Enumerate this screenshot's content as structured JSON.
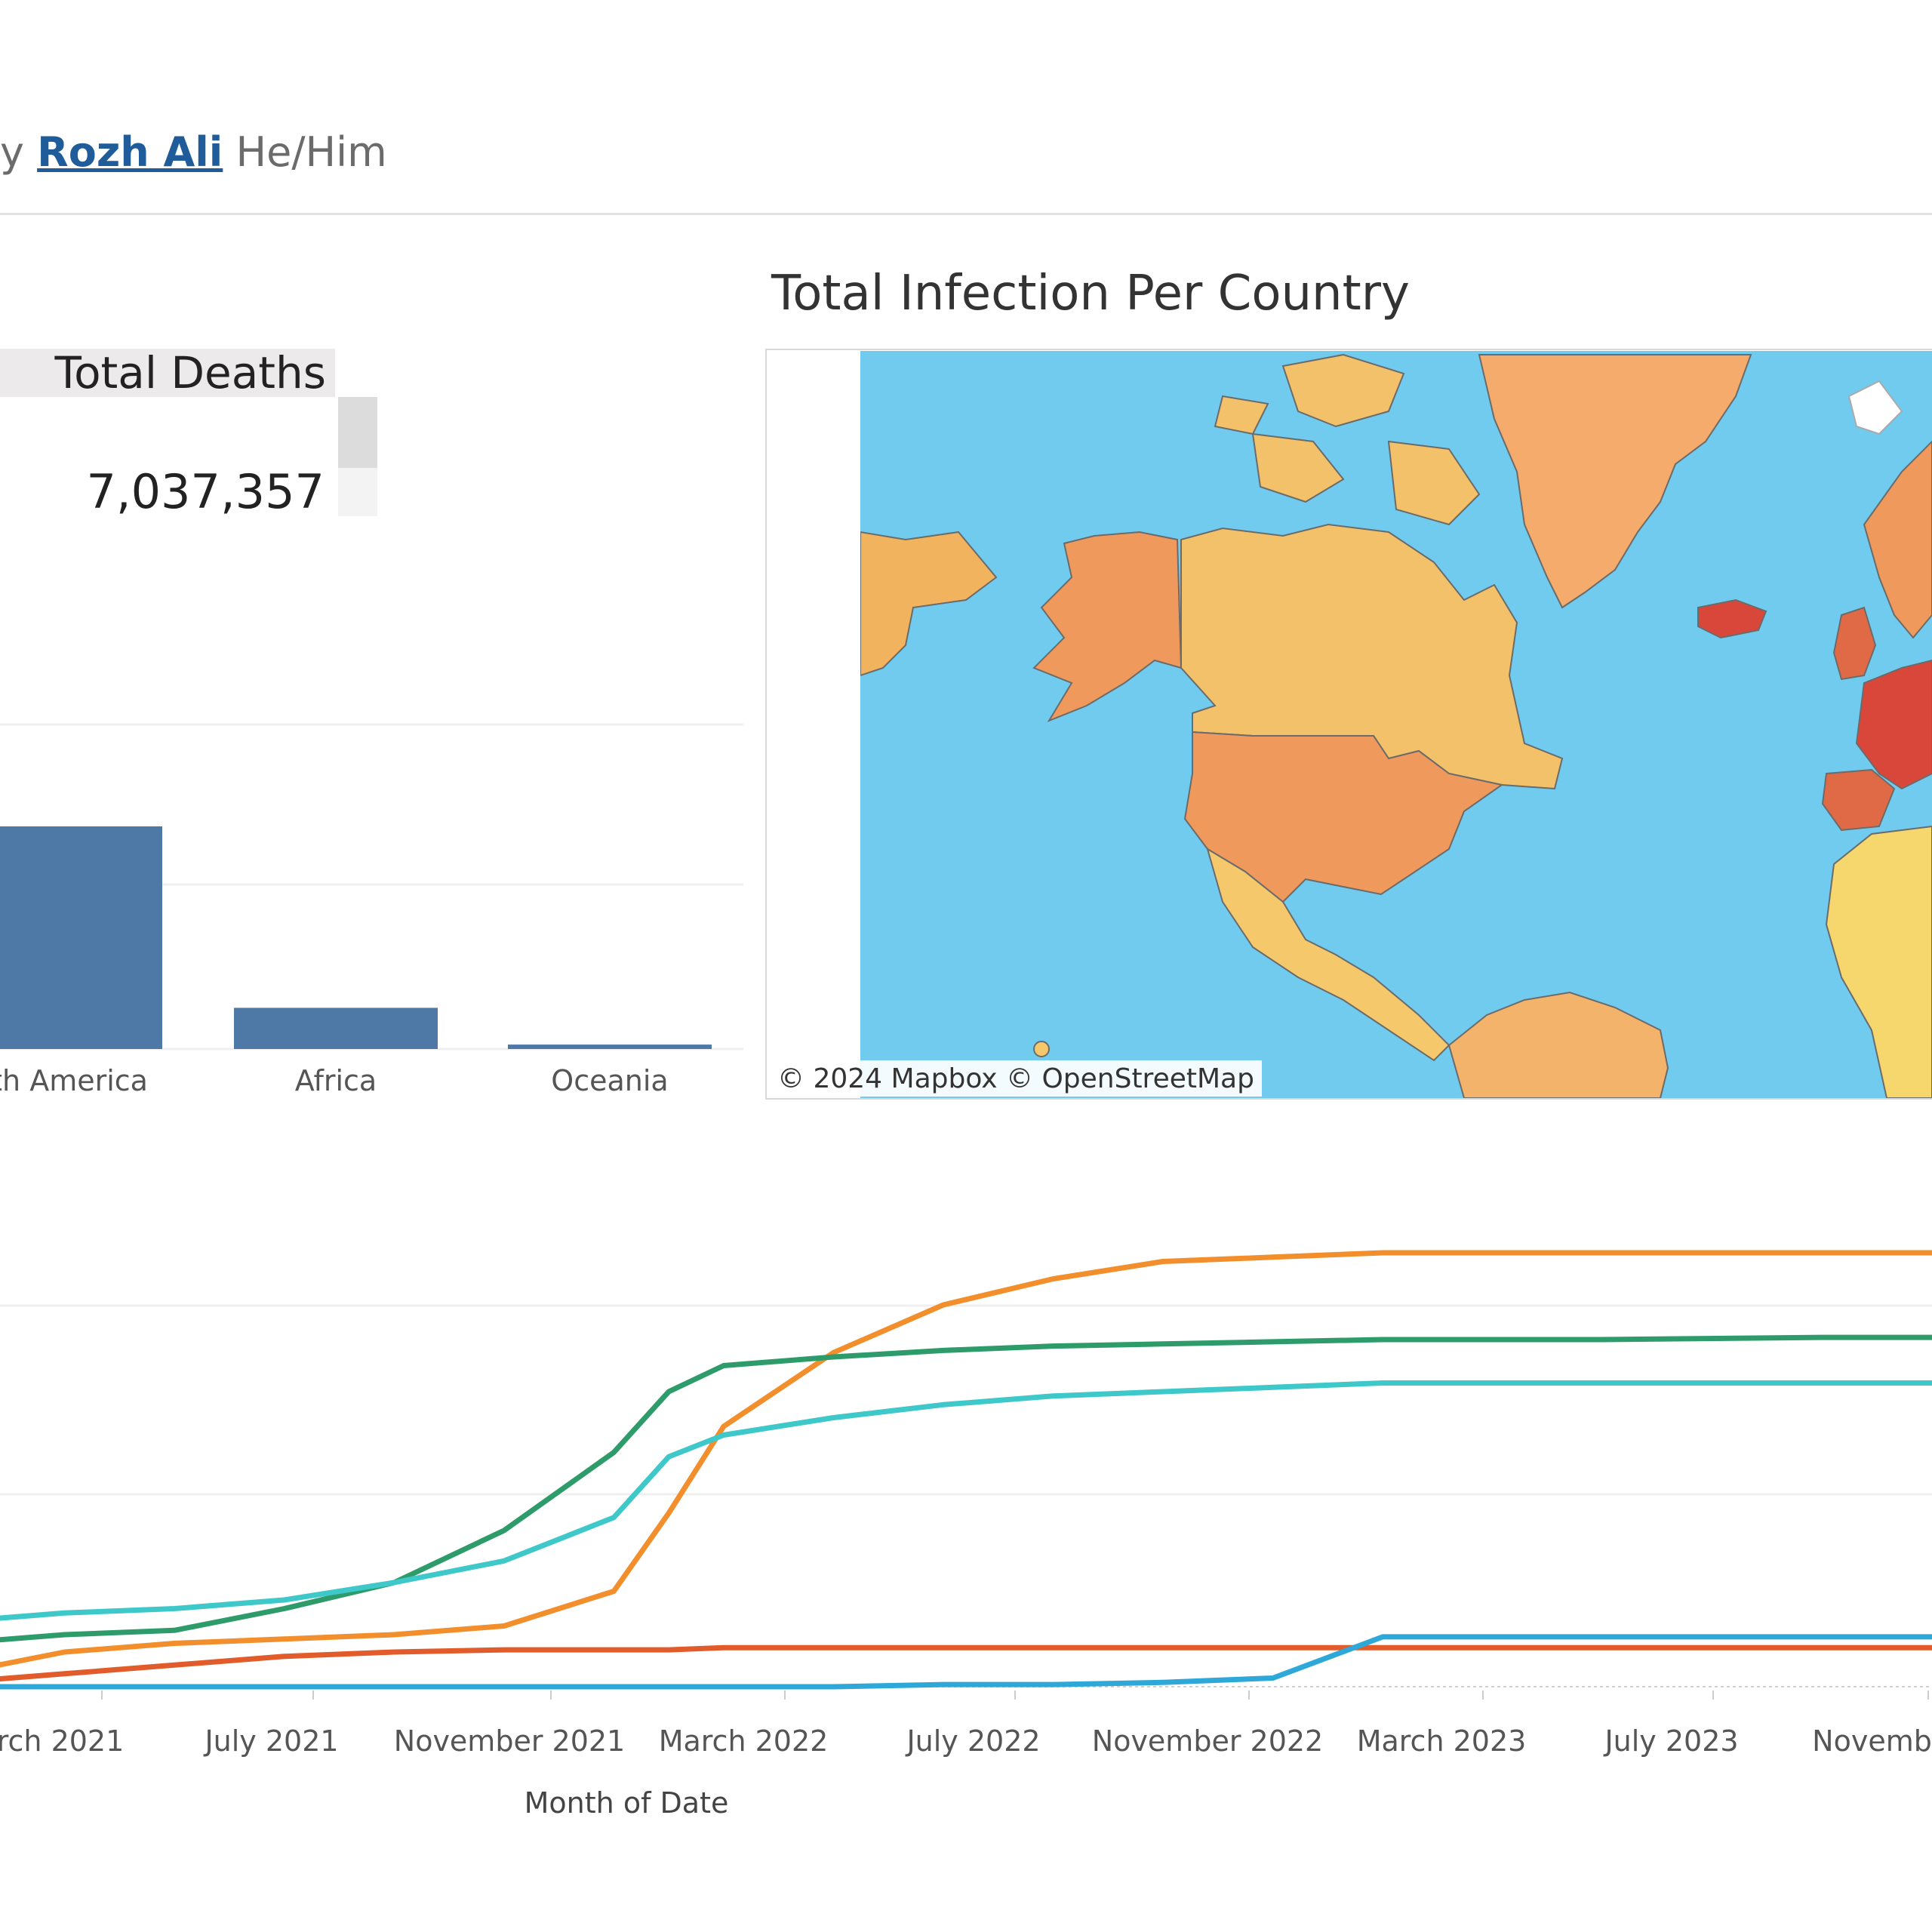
{
  "header": {
    "by_prefix": "y",
    "author_name": "Rozh Ali",
    "pronouns": "He/Him"
  },
  "kpi": {
    "title": "Total Deaths",
    "value": "7,037,357"
  },
  "map": {
    "title": "Total Infection Per Country",
    "credit": "© 2024 Mapbox  © OpenStreetMap",
    "colors": {
      "ocean": "#70cbee",
      "low": "#f5d76e",
      "medium": "#f2b35e",
      "high": "#ef8a4f",
      "very_high": "#d9473a"
    }
  },
  "chart_data": [
    {
      "type": "bar",
      "categories": [
        "uth America",
        "Africa",
        "Oceania"
      ],
      "values": [
        100,
        18.5,
        2
      ],
      "color": "#4e79a7"
    },
    {
      "type": "line",
      "xlabel": "Month of Date",
      "x_ticks": [
        "rch 2021",
        "July 2021",
        "November 2021",
        "March 2022",
        "July 2022",
        "November 2022",
        "March 2023",
        "July 2023",
        "November"
      ],
      "x": [
        "2021-01",
        "2021-03",
        "2021-05",
        "2021-07",
        "2021-09",
        "2021-11",
        "2022-01",
        "2022-02",
        "2022-03",
        "2022-05",
        "2022-07",
        "2022-09",
        "2022-11",
        "2023-01",
        "2023-03",
        "2023-07",
        "2023-11",
        "2024-01"
      ],
      "ylim": [
        0,
        100
      ],
      "series": [
        {
          "color": "#f28e2b",
          "values": [
            3,
            8,
            10,
            11,
            12,
            14,
            22,
            40,
            60,
            77,
            88,
            94,
            98,
            99,
            100,
            100,
            100,
            100
          ]
        },
        {
          "color": "#2e9c6a",
          "values": [
            10,
            12,
            13,
            18,
            24,
            36,
            54,
            68,
            74,
            76,
            77.5,
            78.5,
            79,
            79.5,
            80,
            80,
            80.5,
            80.5
          ]
        },
        {
          "color": "#3ec8c9",
          "values": [
            15,
            17,
            18,
            20,
            24,
            29,
            39,
            53,
            58,
            62,
            65,
            67,
            68,
            69,
            70,
            70,
            70,
            70
          ]
        },
        {
          "color": "#e15c2a",
          "values": [
            1,
            3,
            5,
            7,
            8,
            8.5,
            8.5,
            8.5,
            9,
            9,
            9,
            9,
            9,
            9,
            9,
            9,
            9,
            9
          ]
        },
        {
          "color": "#2ea8d8",
          "values": [
            0,
            0,
            0,
            0,
            0,
            0,
            0,
            0,
            0,
            0,
            0.5,
            0.5,
            1,
            2,
            11.5,
            11.5,
            11.5,
            11.5
          ]
        }
      ]
    }
  ]
}
